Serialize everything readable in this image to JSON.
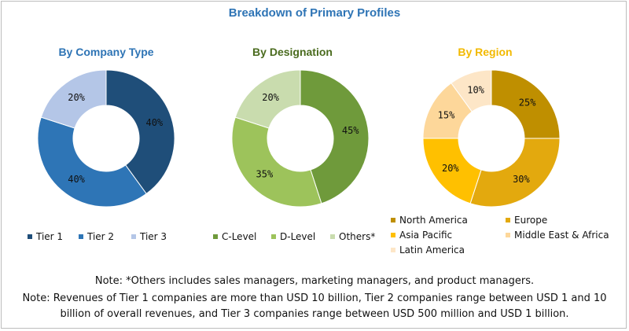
{
  "title": "Breakdown of Primary Profiles",
  "notes": [
    "Note: *Others includes sales managers, marketing managers, and product managers.",
    "Note: Revenues of Tier 1 companies are more than USD 10 billion, Tier 2 companies range between USD 1 and 10",
    "billion of overall revenues, and Tier 3 companies range between USD 500 million and USD 1 billion."
  ],
  "chart_data": [
    {
      "type": "pie",
      "title": "By Company Type",
      "title_color": "#2e74b5",
      "categories": [
        "Tier 1",
        "Tier 2",
        "Tier 3"
      ],
      "values": [
        40,
        40,
        20
      ],
      "labels": [
        "40%",
        "40%",
        "20%"
      ],
      "colors": [
        "#1f4e79",
        "#2e75b6",
        "#b4c6e7"
      ]
    },
    {
      "type": "pie",
      "title": "By Designation",
      "title_color": "#4a6b1e",
      "categories": [
        "C-Level",
        "D-Level",
        "Others*"
      ],
      "values": [
        45,
        35,
        20
      ],
      "labels": [
        "45%",
        "35%",
        "20%"
      ],
      "colors": [
        "#6f9a3b",
        "#9dc35b",
        "#c9dcae"
      ]
    },
    {
      "type": "pie",
      "title": "By Region",
      "title_color": "#f2b900",
      "categories": [
        "North America",
        "Europe",
        "Asia Pacific",
        "Middle East & Africa",
        "Latin America"
      ],
      "values": [
        25,
        30,
        20,
        15,
        10
      ],
      "labels": [
        "25%",
        "30%",
        "20%",
        "15%",
        "10%"
      ],
      "colors": [
        "#bf8f00",
        "#e3a90e",
        "#ffc000",
        "#fdd79a",
        "#fde6c7"
      ]
    }
  ]
}
